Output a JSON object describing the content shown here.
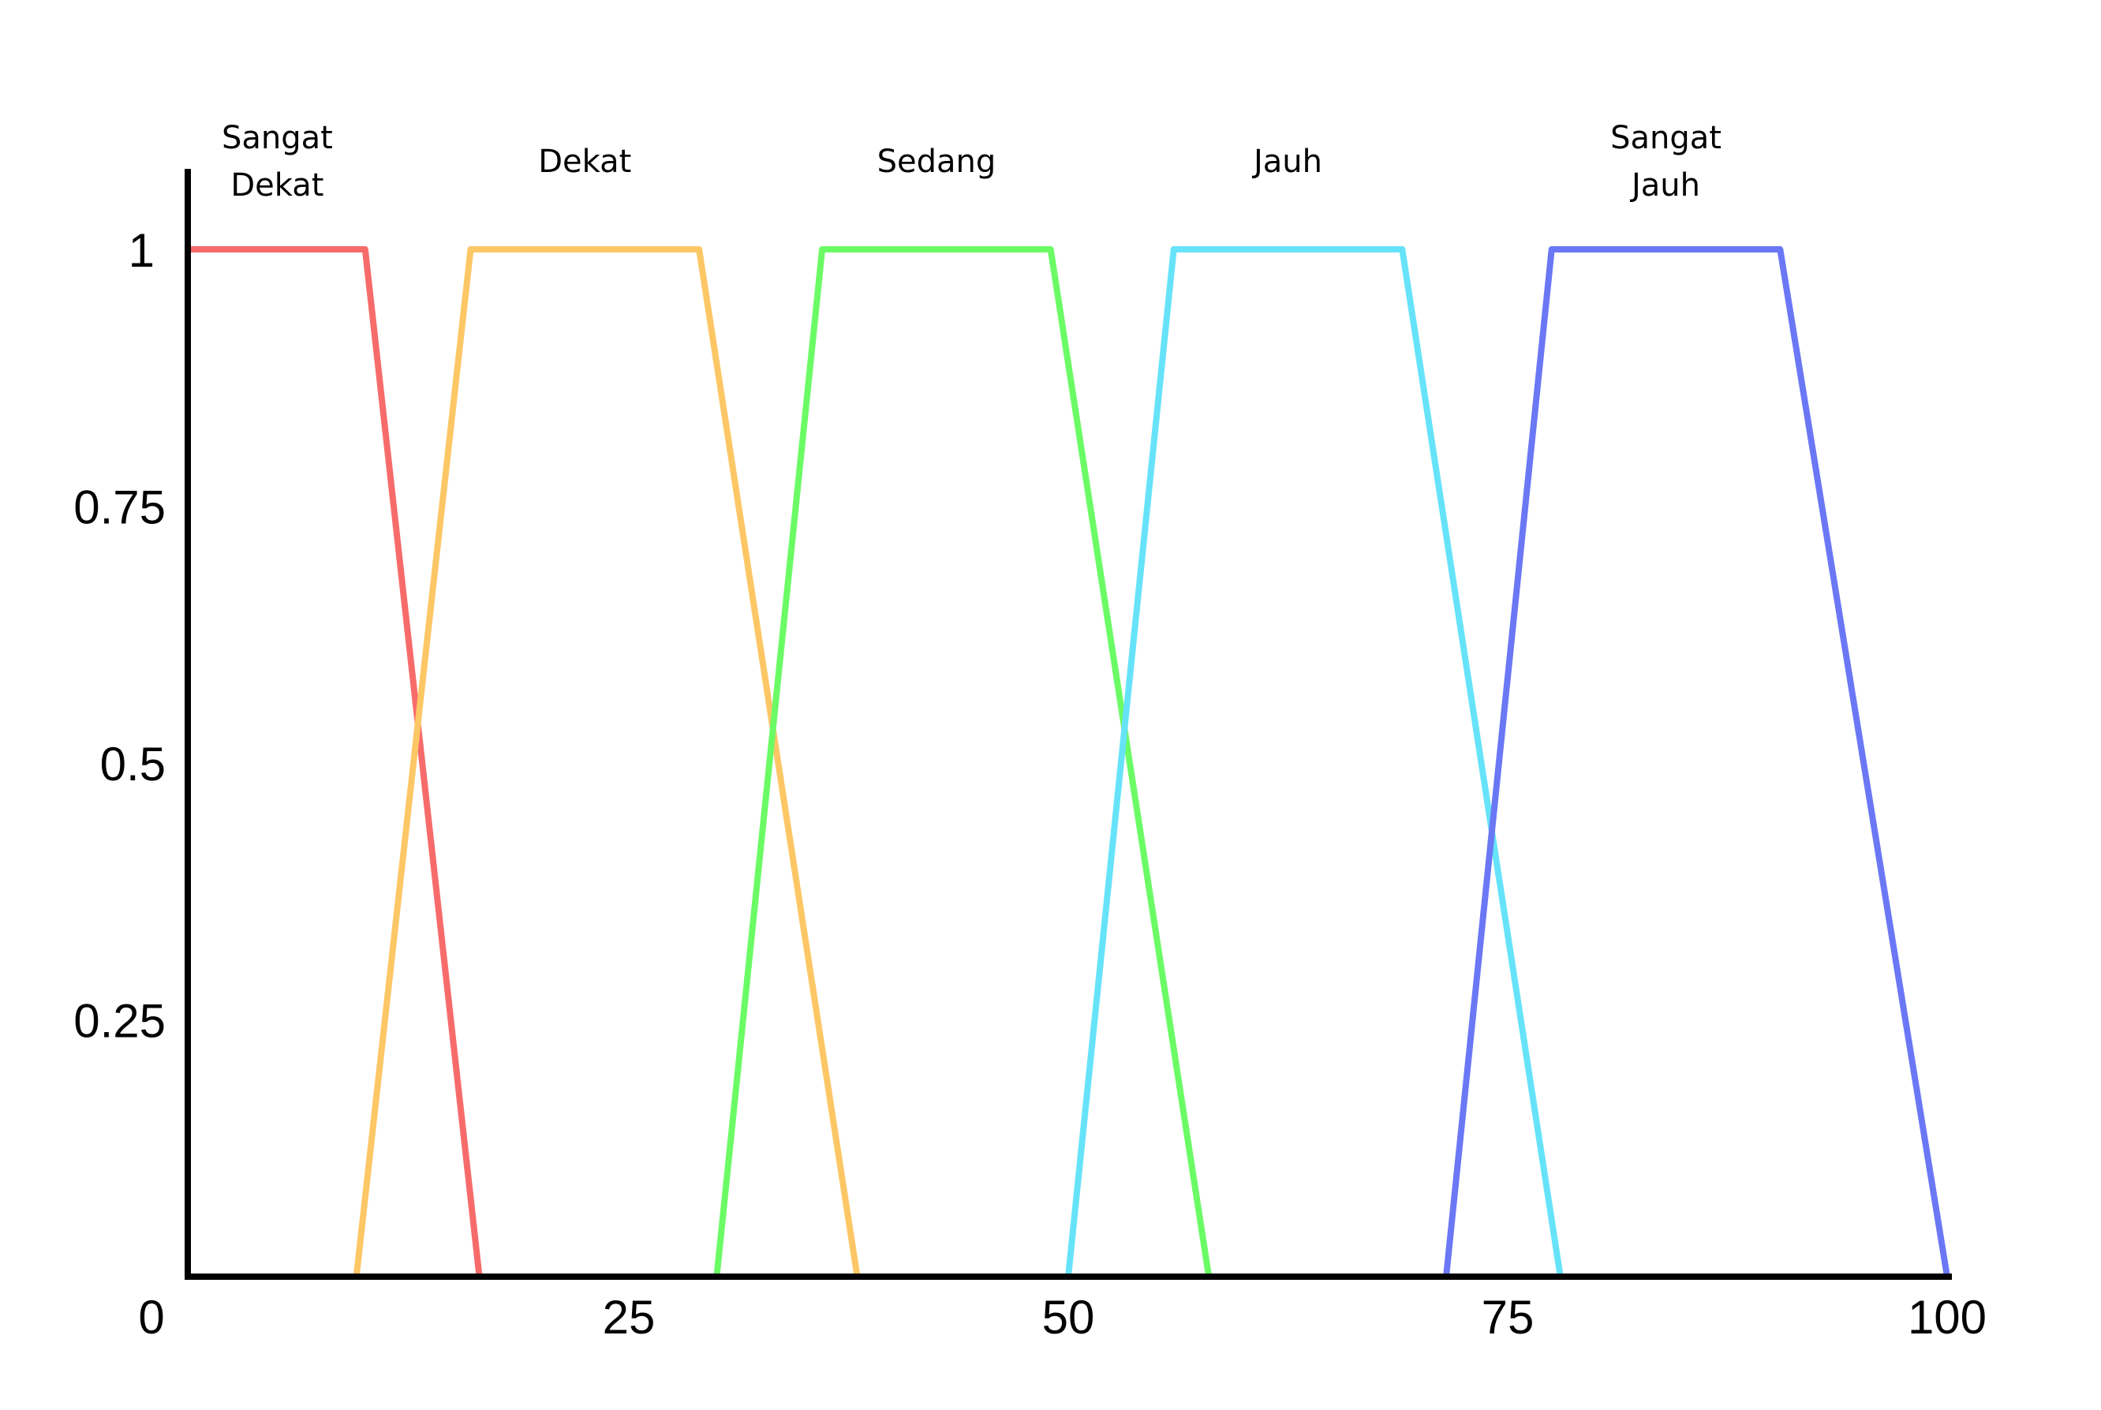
{
  "chart_data": {
    "type": "line",
    "title": "",
    "xlabel": "",
    "ylabel": "",
    "xlim": [
      0,
      100
    ],
    "ylim": [
      0,
      1
    ],
    "x_ticks": [
      "0",
      "25",
      "50",
      "75",
      "100"
    ],
    "y_ticks": [
      "0.25",
      "0.5",
      "0.75",
      "1"
    ],
    "grid": false,
    "legend": "labels above each series",
    "series": [
      {
        "name": "Sangat\nDekat",
        "name_lines": [
          "Sangat",
          "Dekat"
        ],
        "color": "#f76b6b",
        "points": [
          [
            0,
            1
          ],
          [
            10,
            1
          ],
          [
            16.5,
            0
          ]
        ]
      },
      {
        "name": "Dekat",
        "name_lines": [
          "Dekat"
        ],
        "color": "#fdc766",
        "points": [
          [
            9.5,
            0
          ],
          [
            16,
            1
          ],
          [
            29,
            1
          ],
          [
            38,
            0
          ]
        ]
      },
      {
        "name": "Sedang",
        "name_lines": [
          "Sedang"
        ],
        "color": "#6bfb65",
        "points": [
          [
            30,
            0
          ],
          [
            36,
            1
          ],
          [
            49,
            1
          ],
          [
            58,
            0
          ]
        ]
      },
      {
        "name": "Jauh",
        "name_lines": [
          "Jauh"
        ],
        "color": "#66e3f9",
        "points": [
          [
            50,
            0
          ],
          [
            56,
            1
          ],
          [
            69,
            1
          ],
          [
            78,
            0
          ]
        ]
      },
      {
        "name": "Sangat\nJauh",
        "name_lines": [
          "Sangat",
          "Jauh"
        ],
        "color": "#6a78f5",
        "points": [
          [
            71.5,
            0
          ],
          [
            77.5,
            1
          ],
          [
            90.5,
            1
          ],
          [
            100,
            0
          ]
        ]
      }
    ]
  }
}
